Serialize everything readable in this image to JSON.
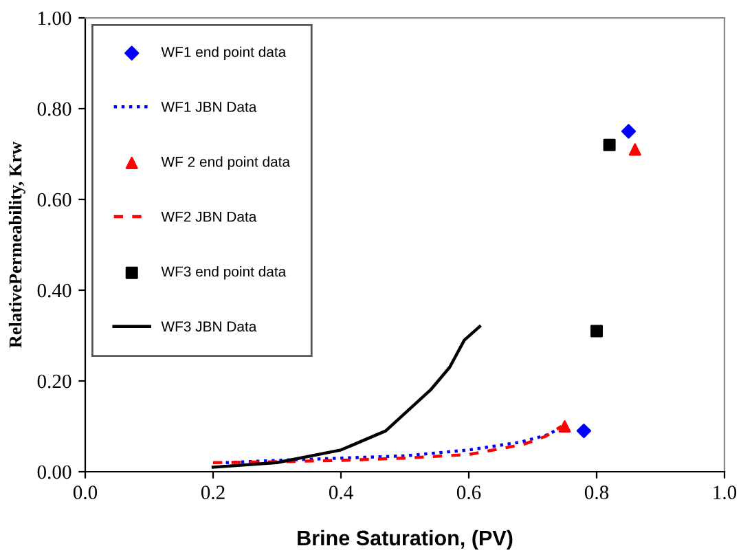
{
  "chart_data": {
    "type": "scatter",
    "xlabel": "Brine Saturation, (PV)",
    "ylabel": "RelativePermeability, Krw",
    "xlim": [
      0.0,
      1.0
    ],
    "ylim": [
      0.0,
      1.0
    ],
    "xticks": [
      {
        "value": 0,
        "label": "0.0"
      },
      {
        "value": 0.2,
        "label": "0.2"
      },
      {
        "value": 0.4,
        "label": "0.4"
      },
      {
        "value": 0.6,
        "label": "0.6"
      },
      {
        "value": 0.8,
        "label": "0.8"
      },
      {
        "value": 1,
        "label": "1.0"
      }
    ],
    "yticks": [
      {
        "value": 0,
        "label": "0.00"
      },
      {
        "value": 0.2,
        "label": "0.20"
      },
      {
        "value": 0.4,
        "label": "0.40"
      },
      {
        "value": 0.6,
        "label": "0.60"
      },
      {
        "value": 0.8,
        "label": "0.80"
      },
      {
        "value": 1,
        "label": "1.00"
      }
    ],
    "grid": false,
    "legend": "top left",
    "series": [
      {
        "name": "WF1 end point data",
        "marker": "diamond",
        "color": "#0000ff",
        "x": [
          0.78,
          0.85
        ],
        "values": [
          0.09,
          0.75
        ]
      },
      {
        "name": "WF1 JBN Data",
        "type": "line",
        "marker": "none",
        "line_style": "dotted",
        "color": "#0000ff",
        "x": [
          0.22,
          0.3,
          0.4,
          0.5,
          0.6,
          0.68,
          0.72,
          0.75
        ],
        "values": [
          0.02,
          0.025,
          0.03,
          0.035,
          0.048,
          0.065,
          0.08,
          0.1
        ]
      },
      {
        "name": "WF 2 end point data",
        "marker": "triangle",
        "color": "#ff0000",
        "x": [
          0.75,
          0.86
        ],
        "values": [
          0.1,
          0.71
        ]
      },
      {
        "name": "WF2 JBN Data",
        "type": "line",
        "marker": "none",
        "line_style": "dashed",
        "color": "#ff0000",
        "x": [
          0.2,
          0.3,
          0.4,
          0.5,
          0.6,
          0.685,
          0.72,
          0.745
        ],
        "values": [
          0.02,
          0.022,
          0.025,
          0.03,
          0.038,
          0.06,
          0.078,
          0.1
        ]
      },
      {
        "name": "WF3 end point data",
        "marker": "square",
        "color": "#000000",
        "x": [
          0.8,
          0.82
        ],
        "values": [
          0.31,
          0.72
        ]
      },
      {
        "name": "WF3 JBN Data",
        "type": "line",
        "marker": "none",
        "line_style": "solid",
        "color": "#000000",
        "x": [
          0.2,
          0.3,
          0.4,
          0.47,
          0.54,
          0.57,
          0.593,
          0.617
        ],
        "values": [
          0.01,
          0.02,
          0.048,
          0.09,
          0.18,
          0.23,
          0.29,
          0.32
        ]
      }
    ]
  }
}
